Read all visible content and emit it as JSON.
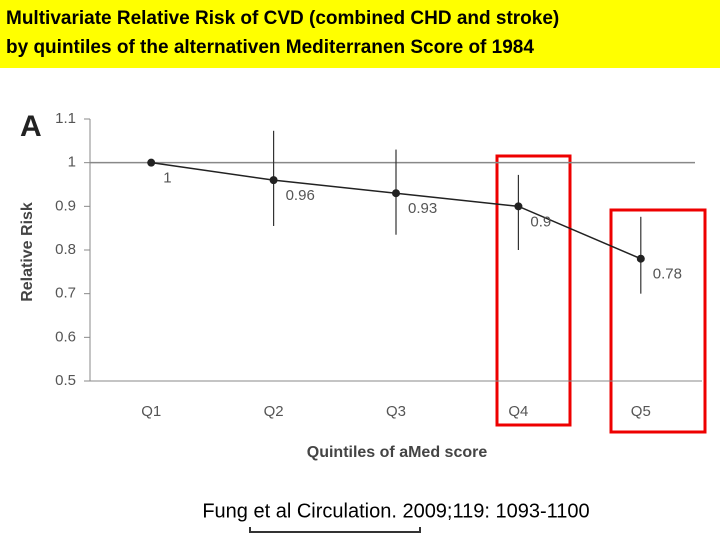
{
  "chart_data": {
    "type": "line",
    "title": [
      "Multivariate Relative Risk of CVD (combined CHD and stroke)",
      "by quintiles of the alternativen Mediterranen Score  of 1984"
    ],
    "panel_label": "A",
    "y_label": "Relative Risk",
    "x_label": "Quintiles of aMed score",
    "citation": "Fung et al  Circulation. 2009;119: 1093-1100",
    "categories": [
      "Q1",
      "Q2",
      "Q3",
      "Q4",
      "Q5"
    ],
    "values": [
      1,
      0.96,
      0.93,
      0.9,
      0.78
    ],
    "ci_lower": [
      null,
      0.855,
      0.835,
      0.8,
      0.7
    ],
    "ci_upper": [
      null,
      1.073,
      1.03,
      0.972,
      0.876
    ],
    "color": "#222222",
    "reference_line": 1,
    "ylim": [
      0.5,
      1.1
    ],
    "yticks": [
      0.5,
      0.6,
      0.7,
      0.8,
      0.9,
      1,
      1.1
    ]
  }
}
